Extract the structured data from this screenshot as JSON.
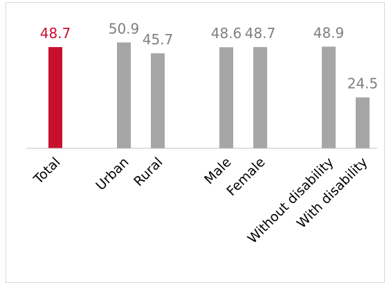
{
  "chart_data": {
    "type": "bar",
    "title": "",
    "xlabel": "",
    "ylabel": "",
    "ylim": [
      0,
      53
    ],
    "grid": false,
    "legend": "none",
    "categories": [
      "Total",
      "Urban",
      "Rural",
      "Male",
      "Female",
      "Without disability",
      "With disability"
    ],
    "values": [
      48.7,
      50.9,
      45.7,
      48.6,
      48.7,
      48.9,
      24.5
    ],
    "value_labels": [
      "48.7",
      "50.9",
      "45.7",
      "48.6",
      "48.7",
      "48.9",
      "24.5"
    ],
    "colors": {
      "highlight": "#c8102e",
      "default": "#a6a6a6",
      "label_default": "#7f7f7f",
      "axis": "#bfbfbf"
    }
  }
}
